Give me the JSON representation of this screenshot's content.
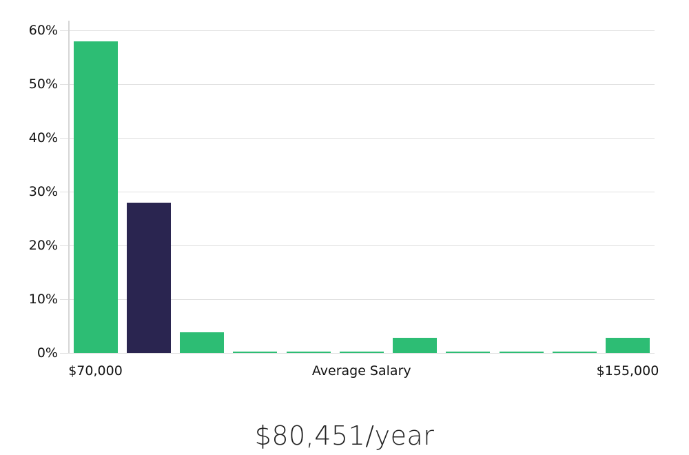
{
  "chart_data": {
    "type": "bar",
    "title": "",
    "ylabel": "",
    "xlabel": "",
    "grid": true,
    "ylim": [
      0,
      60
    ],
    "yticks": [
      {
        "value": 0,
        "label": "0%"
      },
      {
        "value": 10,
        "label": "10%"
      },
      {
        "value": 20,
        "label": "20%"
      },
      {
        "value": 30,
        "label": "30%"
      },
      {
        "value": 40,
        "label": "40%"
      },
      {
        "value": 50,
        "label": "50%"
      },
      {
        "value": 60,
        "label": "60%"
      }
    ],
    "bars": [
      {
        "value": 58.0,
        "color": "#2dbd74"
      },
      {
        "value": 28.0,
        "color": "#2a2550"
      },
      {
        "value": 3.9,
        "color": "#2dbd74"
      },
      {
        "value": 0.2,
        "color": "#2dbd74"
      },
      {
        "value": 0.2,
        "color": "#2dbd74"
      },
      {
        "value": 0.2,
        "color": "#2dbd74"
      },
      {
        "value": 2.8,
        "color": "#2dbd74"
      },
      {
        "value": 0.2,
        "color": "#2dbd74"
      },
      {
        "value": 0.2,
        "color": "#2dbd74"
      },
      {
        "value": 0.2,
        "color": "#2dbd74"
      },
      {
        "value": 2.8,
        "color": "#2dbd74"
      }
    ],
    "x_tick_labels": [
      {
        "text": "$70,000",
        "bar_index": 0
      },
      {
        "text": "Average Salary",
        "bar_index": 5
      },
      {
        "text": "$155,000",
        "bar_index": 10
      }
    ],
    "colors": {
      "bar_green": "#2dbd74",
      "bar_navy": "#2a2550",
      "gridline": "#e0e0e0",
      "axis": "#d6d6d6",
      "label_text": "#111111"
    }
  },
  "caption": {
    "text": "$80,451/year"
  }
}
